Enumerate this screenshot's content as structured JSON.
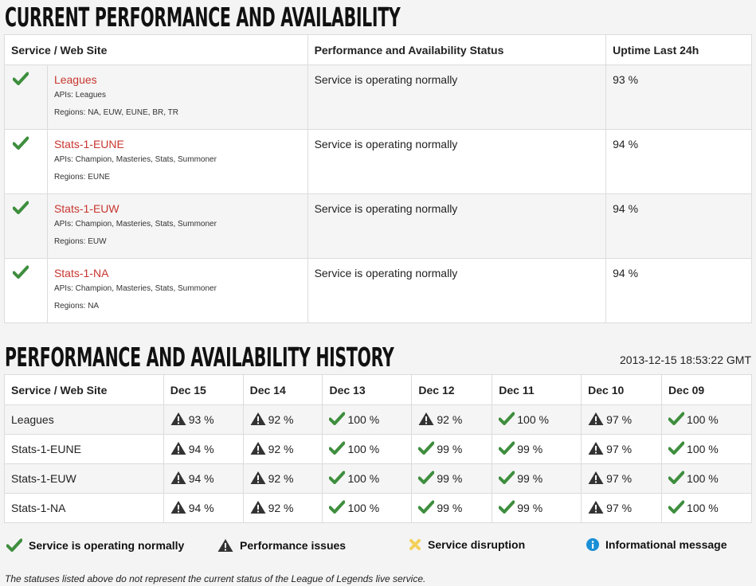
{
  "current_section": {
    "title": "CURRENT PERFORMANCE AND AVAILABILITY",
    "headers": [
      "Service / Web Site",
      "Performance and Availability Status",
      "Uptime Last 24h"
    ],
    "rows": [
      {
        "name": "Leagues",
        "apis": "APIs: Leagues",
        "regions": "Regions: NA, EUW, EUNE, BR, TR",
        "status": "Service is operating normally",
        "uptime": "93 %",
        "icon": "check-icon"
      },
      {
        "name": "Stats-1-EUNE",
        "apis": "APIs: Champion, Masteries, Stats, Summoner",
        "regions": "Regions: EUNE",
        "status": "Service is operating normally",
        "uptime": "94 %",
        "icon": "check-icon"
      },
      {
        "name": "Stats-1-EUW",
        "apis": "APIs: Champion, Masteries, Stats, Summoner",
        "regions": "Regions: EUW",
        "status": "Service is operating normally",
        "uptime": "94 %",
        "icon": "check-icon"
      },
      {
        "name": "Stats-1-NA",
        "apis": "APIs: Champion, Masteries, Stats, Summoner",
        "regions": "Regions: NA",
        "status": "Service is operating normally",
        "uptime": "94 %",
        "icon": "check-icon"
      }
    ]
  },
  "history_section": {
    "title": "PERFORMANCE AND AVAILABILITY HISTORY",
    "timestamp": "2013-12-15 18:53:22 GMT",
    "headers": [
      "Service / Web Site",
      "Dec 15",
      "Dec 14",
      "Dec 13",
      "Dec 12",
      "Dec 11",
      "Dec 10",
      "Dec 09"
    ],
    "rows": [
      {
        "name": "Leagues",
        "cells": [
          {
            "icon": "warning-icon",
            "value": "93 %"
          },
          {
            "icon": "warning-icon",
            "value": "92 %"
          },
          {
            "icon": "check-icon",
            "value": "100 %"
          },
          {
            "icon": "warning-icon",
            "value": "92 %"
          },
          {
            "icon": "check-icon",
            "value": "100 %"
          },
          {
            "icon": "warning-icon",
            "value": "97 %"
          },
          {
            "icon": "check-icon",
            "value": "100 %"
          }
        ]
      },
      {
        "name": "Stats-1-EUNE",
        "cells": [
          {
            "icon": "warning-icon",
            "value": "94 %"
          },
          {
            "icon": "warning-icon",
            "value": "92 %"
          },
          {
            "icon": "check-icon",
            "value": "100 %"
          },
          {
            "icon": "check-icon",
            "value": "99 %"
          },
          {
            "icon": "check-icon",
            "value": "99 %"
          },
          {
            "icon": "warning-icon",
            "value": "97 %"
          },
          {
            "icon": "check-icon",
            "value": "100 %"
          }
        ]
      },
      {
        "name": "Stats-1-EUW",
        "cells": [
          {
            "icon": "warning-icon",
            "value": "94 %"
          },
          {
            "icon": "warning-icon",
            "value": "92 %"
          },
          {
            "icon": "check-icon",
            "value": "100 %"
          },
          {
            "icon": "check-icon",
            "value": "99 %"
          },
          {
            "icon": "check-icon",
            "value": "99 %"
          },
          {
            "icon": "warning-icon",
            "value": "97 %"
          },
          {
            "icon": "check-icon",
            "value": "100 %"
          }
        ]
      },
      {
        "name": "Stats-1-NA",
        "cells": [
          {
            "icon": "warning-icon",
            "value": "94 %"
          },
          {
            "icon": "warning-icon",
            "value": "92 %"
          },
          {
            "icon": "check-icon",
            "value": "100 %"
          },
          {
            "icon": "check-icon",
            "value": "99 %"
          },
          {
            "icon": "check-icon",
            "value": "99 %"
          },
          {
            "icon": "warning-icon",
            "value": "97 %"
          },
          {
            "icon": "check-icon",
            "value": "100 %"
          }
        ]
      }
    ]
  },
  "legend": [
    {
      "icon": "check-icon",
      "label": "Service is operating normally"
    },
    {
      "icon": "warning-icon",
      "label": "Performance issues"
    },
    {
      "icon": "disruption-icon",
      "label": "Service disruption"
    },
    {
      "icon": "info-icon",
      "label": "Informational message"
    }
  ],
  "footnote": "The statuses listed above do not represent the current status of the League of Legends live service.",
  "colors": {
    "link": "#c8362f",
    "check": "#3e8e3e",
    "warning": "#333333",
    "disruption": "#f2d15c",
    "info": "#1a8fd6"
  }
}
